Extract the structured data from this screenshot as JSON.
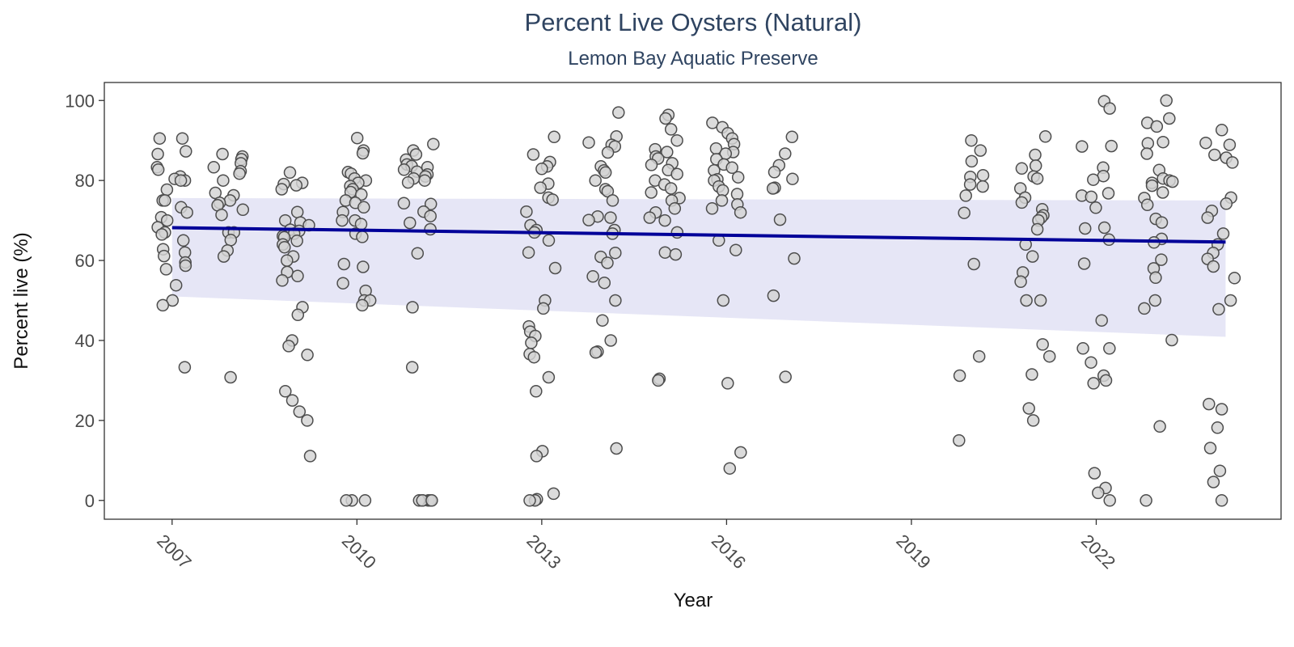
{
  "chart_data": {
    "type": "scatter",
    "title": "Percent Live Oysters (Natural)",
    "subtitle": "Lemon Bay Aquatic Preserve",
    "xlabel": "Year",
    "ylabel": "Percent live (%)",
    "xlim": [
      2005.9,
      2025.0
    ],
    "ylim": [
      -4.7,
      104.5
    ],
    "x_ticks": [
      "2007",
      "2010",
      "2013",
      "2016",
      "2019",
      "2022"
    ],
    "y_ticks": [
      "0",
      "20",
      "40",
      "60",
      "80",
      "100"
    ],
    "grid": false,
    "legend": "none",
    "trend_line": {
      "x_start": 2007.0,
      "x_end": 2024.1,
      "y_start": 68.2,
      "y_end": 64.6,
      "ci_lower_start": 51.0,
      "ci_lower_end": 40.9,
      "ci_upper_start": 75.6,
      "ci_upper_end": 75.0
    },
    "groups": [
      {
        "x": 2007.0,
        "values": [
          90.5,
          90.5,
          87.3,
          86.6,
          83.3,
          82.7,
          81.0,
          80.4,
          80.0,
          80.0,
          77.7,
          75.0,
          75.0,
          73.3,
          72.0,
          70.8,
          70.0,
          68.3,
          67.0,
          66.5,
          65.0,
          62.8,
          62.0,
          61.1,
          59.5,
          58.7,
          57.8,
          53.8,
          50.0,
          48.8,
          33.3
        ]
      },
      {
        "x": 2007.9,
        "values": [
          86.6,
          86.0,
          85.3,
          84.3,
          83.3,
          82.3,
          81.7,
          80.0,
          76.9,
          76.3,
          75.0,
          74.4,
          73.8,
          72.7,
          71.4,
          67.0,
          67.0,
          65.1,
          62.5,
          61.0,
          30.8
        ]
      },
      {
        "x": 2009.0,
        "values": [
          82.0,
          79.4,
          79.1,
          78.8,
          77.8,
          72.1,
          70.0,
          69.5,
          68.8,
          67.7,
          67.4,
          66.7,
          66.1,
          65.8,
          64.9,
          64.0,
          63.3,
          61.0,
          60.0,
          57.1,
          56.1,
          55.0,
          48.3,
          46.4,
          40.0,
          38.6,
          36.4,
          27.3,
          25.0,
          22.2,
          20.0,
          11.1
        ]
      },
      {
        "x": 2010.0,
        "values": [
          90.6,
          87.5,
          86.8,
          82.1,
          81.7,
          80.5,
          80.0,
          79.4,
          78.6,
          77.8,
          77.1,
          76.5,
          75.0,
          74.4,
          73.3,
          72.1,
          70.0,
          70.0,
          69.1,
          66.7,
          65.9,
          59.1,
          58.4,
          54.3,
          52.4,
          50.0,
          50.0,
          48.8,
          0,
          0,
          0
        ]
      },
      {
        "x": 2011.0,
        "values": [
          89.1,
          87.5,
          86.5,
          85.2,
          84.0,
          83.6,
          83.3,
          82.7,
          82.2,
          81.5,
          81.0,
          80.5,
          80.0,
          79.5,
          74.3,
          74.1,
          72.2,
          71.1,
          69.4,
          67.8,
          61.8,
          48.3,
          33.3,
          0,
          0,
          0,
          0,
          0,
          0
        ]
      },
      {
        "x": 2013.0,
        "values": [
          90.9,
          86.5,
          84.6,
          83.5,
          82.9,
          79.2,
          78.2,
          75.7,
          75.2,
          72.2,
          68.8,
          67.6,
          67.0,
          65.0,
          62.0,
          58.1,
          50.0,
          48.0,
          43.5,
          42.2,
          41.1,
          39.4,
          36.6,
          35.8,
          30.8,
          27.3,
          12.3,
          11.1,
          1.7,
          0.3,
          0,
          0
        ]
      },
      {
        "x": 2014.0,
        "values": [
          97.0,
          91.0,
          89.5,
          88.9,
          88.5,
          87.0,
          83.5,
          82.5,
          82.0,
          80.0,
          77.8,
          77.3,
          75.0,
          71.0,
          70.7,
          70.1,
          67.6,
          66.7,
          61.9,
          60.9,
          59.4,
          56.0,
          54.4,
          50.0,
          45.0,
          40.0,
          37.2,
          37.0,
          13.0
        ]
      },
      {
        "x": 2015.0,
        "values": [
          96.4,
          95.5,
          92.8,
          90.0,
          87.8,
          87.1,
          86.0,
          85.5,
          84.3,
          83.9,
          82.6,
          81.6,
          80.0,
          79.0,
          78.0,
          77.0,
          75.6,
          75.0,
          73.0,
          72.0,
          70.7,
          70.0,
          67.0,
          62.0,
          61.5,
          30.4,
          30.0
        ]
      },
      {
        "x": 2016.0,
        "values": [
          94.4,
          93.3,
          91.8,
          90.5,
          89.1,
          88.0,
          87.1,
          86.7,
          85.3,
          84.0,
          83.2,
          82.5,
          80.8,
          80.3,
          80.0,
          78.5,
          77.5,
          76.6,
          75.0,
          74.0,
          73.0,
          72.0,
          65.0,
          62.6,
          50.0,
          29.3,
          12.0,
          8.0
        ]
      },
      {
        "x": 2017.0,
        "values": [
          90.9,
          86.7,
          83.8,
          82.1,
          80.4,
          78.2,
          78.0,
          70.2,
          60.5,
          51.2,
          30.9
        ]
      },
      {
        "x": 2020.0,
        "values": [
          90.0,
          87.5,
          84.8,
          81.3,
          80.9,
          79.0,
          78.5,
          76.2,
          71.9,
          59.1,
          36.0,
          31.2,
          15.0
        ]
      },
      {
        "x": 2021.0,
        "values": [
          91.0,
          86.4,
          83.7,
          83.0,
          81.0,
          80.5,
          78.0,
          75.7,
          74.5,
          72.8,
          71.3,
          70.7,
          70.0,
          67.8,
          64.0,
          61.0,
          57.0,
          54.7,
          50.0,
          50.0,
          39.0,
          36.0,
          31.5,
          23.0,
          20.0
        ]
      },
      {
        "x": 2022.0,
        "values": [
          99.8,
          98.0,
          88.6,
          88.5,
          83.2,
          81.1,
          80.2,
          76.8,
          76.2,
          75.9,
          73.2,
          68.2,
          68.0,
          65.2,
          59.2,
          45.0,
          38.0,
          38.0,
          34.5,
          31.2,
          30.0,
          29.3,
          6.8,
          3.1,
          1.9,
          0
        ]
      },
      {
        "x": 2023.0,
        "values": [
          100.0,
          95.5,
          94.4,
          93.5,
          89.6,
          89.3,
          86.7,
          82.6,
          80.5,
          80.0,
          79.7,
          79.4,
          78.7,
          77.0,
          75.6,
          73.9,
          70.4,
          69.5,
          65.4,
          64.5,
          60.2,
          58.0,
          55.7,
          50.0,
          48.0,
          40.1,
          18.5,
          0
        ]
      },
      {
        "x": 2024.0,
        "values": [
          92.6,
          89.4,
          88.9,
          86.4,
          85.7,
          84.5,
          75.7,
          74.2,
          72.4,
          70.7,
          66.7,
          64.0,
          61.9,
          60.4,
          58.5,
          55.6,
          50.0,
          47.8,
          24.1,
          22.8,
          18.2,
          13.1,
          7.4,
          4.6,
          0
        ]
      }
    ],
    "colors": {
      "title": "#2f4461",
      "point_fill": "#d3d3d3",
      "point_stroke": "#4d4d4d",
      "trend_line": "#000099",
      "ci_band": "#d6d6f0",
      "panel_border": "#333333"
    }
  }
}
